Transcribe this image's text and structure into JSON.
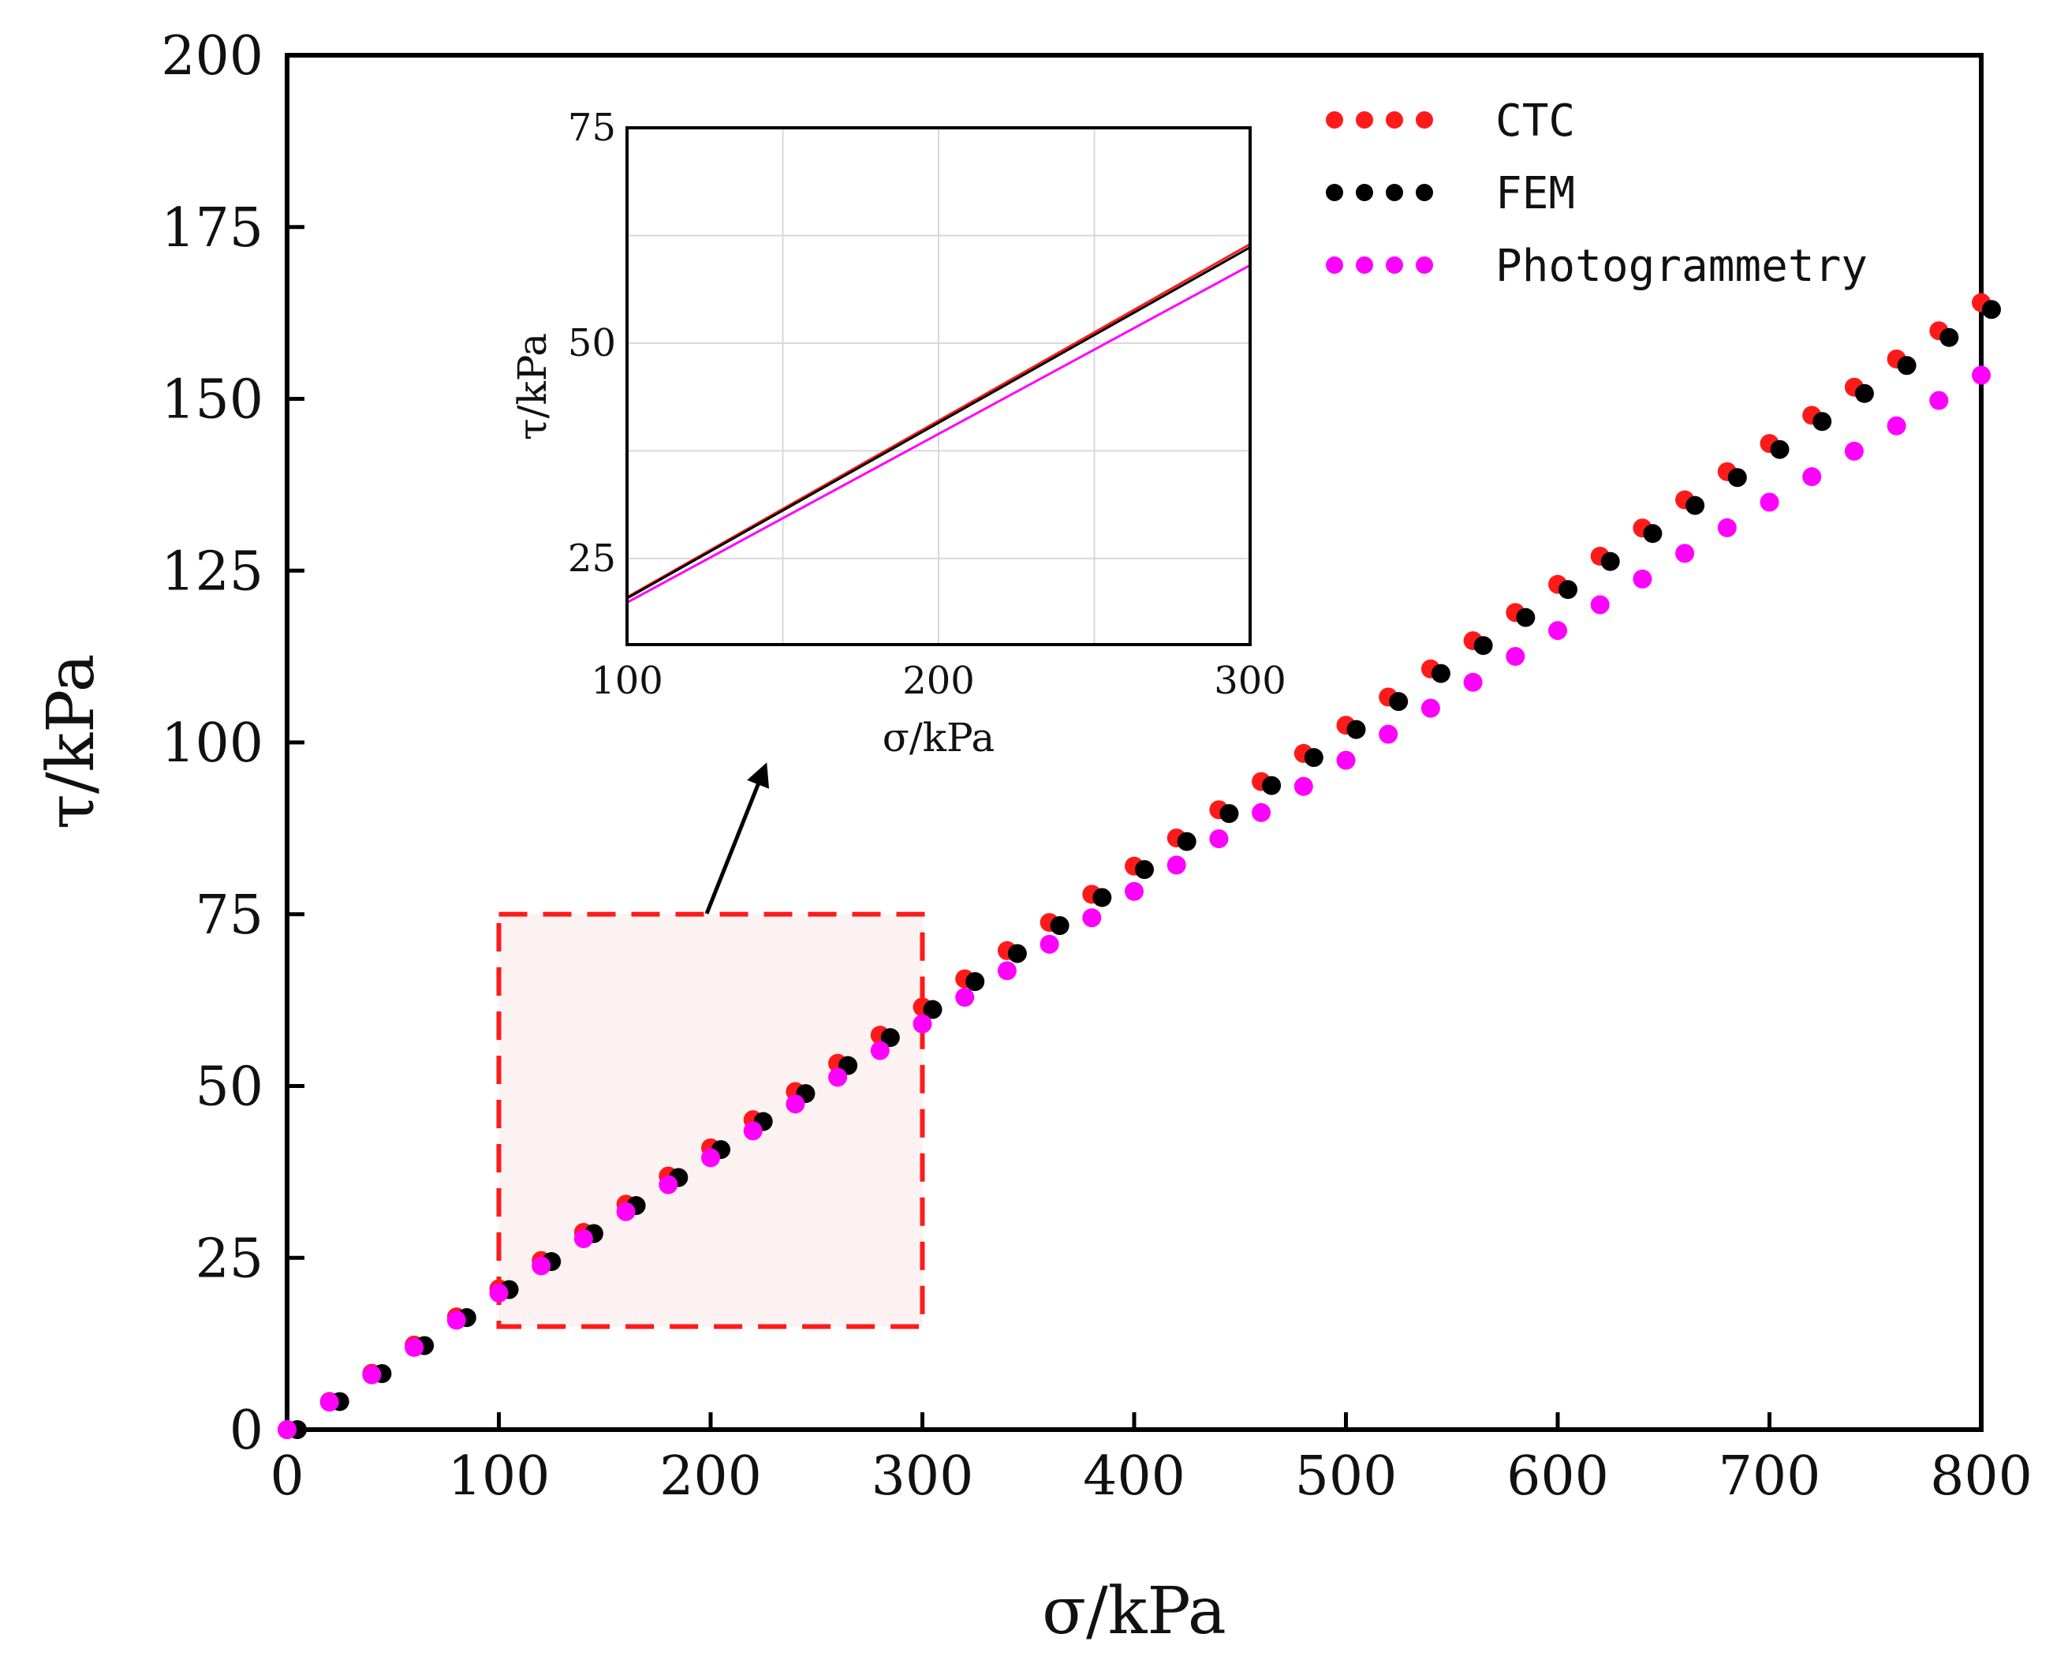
{
  "chart_data": [
    {
      "type": "scatter",
      "title": "",
      "xlabel": "σ/kPa",
      "ylabel": "τ/kPa",
      "xlim": [
        0,
        800
      ],
      "ylim": [
        0,
        200
      ],
      "xticks": [
        "0",
        "100",
        "200",
        "300",
        "400",
        "500",
        "600",
        "700",
        "800"
      ],
      "yticks": [
        "0",
        "25",
        "50",
        "75",
        "100",
        "125",
        "150",
        "175",
        "200"
      ],
      "legend_position": "top-right",
      "series": [
        {
          "name": "CTC",
          "color": "#ff1a1a",
          "x": [
            0,
            20,
            40,
            60,
            80,
            100,
            120,
            140,
            160,
            180,
            200,
            220,
            240,
            260,
            280,
            300,
            320,
            340,
            360,
            380,
            400,
            420,
            440,
            460,
            480,
            500,
            520,
            540,
            560,
            580,
            600,
            620,
            640,
            660,
            680,
            700,
            720,
            740,
            760,
            780,
            800
          ],
          "y": [
            0,
            4.1,
            8.2,
            12.3,
            16.4,
            20.5,
            24.6,
            28.7,
            32.8,
            36.9,
            41.0,
            45.1,
            49.2,
            53.3,
            57.4,
            61.5,
            65.6,
            69.7,
            73.8,
            77.9,
            82.0,
            86.1,
            90.2,
            94.3,
            98.4,
            102.5,
            106.6,
            110.7,
            114.8,
            118.9,
            123.0,
            127.1,
            131.2,
            135.3,
            139.4,
            143.5,
            147.6,
            151.7,
            155.8,
            159.9,
            164.0
          ]
        },
        {
          "name": "FEM",
          "color": "#000000",
          "x": [
            0,
            20,
            40,
            60,
            80,
            100,
            120,
            140,
            160,
            180,
            200,
            220,
            240,
            260,
            280,
            300,
            320,
            340,
            360,
            380,
            400,
            420,
            440,
            460,
            480,
            500,
            520,
            540,
            560,
            580,
            600,
            620,
            640,
            660,
            680,
            700,
            720,
            740,
            760,
            780,
            800
          ],
          "y": [
            0,
            4.08,
            8.15,
            12.23,
            16.3,
            20.38,
            24.45,
            28.53,
            32.6,
            36.68,
            40.75,
            44.83,
            48.9,
            52.98,
            57.05,
            61.13,
            65.2,
            69.28,
            73.35,
            77.43,
            81.5,
            85.58,
            89.65,
            93.73,
            97.8,
            101.88,
            105.95,
            110.03,
            114.1,
            118.18,
            122.25,
            126.33,
            130.4,
            134.48,
            138.55,
            142.63,
            146.7,
            150.78,
            154.85,
            158.93,
            163.0
          ]
        },
        {
          "name": "Photogrammetry",
          "color": "#ff00ff",
          "x": [
            0,
            20,
            40,
            60,
            80,
            100,
            120,
            140,
            160,
            180,
            200,
            220,
            240,
            260,
            280,
            300,
            320,
            340,
            360,
            380,
            400,
            420,
            440,
            460,
            480,
            500,
            520,
            540,
            560,
            580,
            600,
            620,
            640,
            660,
            680,
            700,
            720,
            740,
            760,
            780,
            800
          ],
          "y": [
            0,
            4.0,
            7.98,
            11.96,
            15.92,
            19.88,
            23.83,
            27.78,
            31.71,
            35.64,
            39.56,
            43.47,
            47.38,
            51.27,
            55.16,
            59.04,
            62.91,
            66.78,
            70.63,
            74.48,
            78.32,
            82.15,
            85.98,
            89.79,
            93.6,
            97.4,
            101.19,
            104.98,
            108.75,
            112.52,
            116.28,
            120.03,
            123.78,
            127.51,
            131.24,
            134.96,
            138.67,
            142.38,
            146.07,
            149.76,
            153.44
          ]
        }
      ],
      "highlight_region": {
        "x_range": [
          100,
          300
        ],
        "y_range": [
          15,
          75
        ]
      }
    },
    {
      "type": "line",
      "title": "",
      "xlabel": "σ/kPa",
      "ylabel": "τ/kPa",
      "xlim": [
        100,
        300
      ],
      "ylim": [
        15,
        75
      ],
      "xticks": [
        "100",
        "200",
        "300"
      ],
      "yticks": [
        "25",
        "50",
        "75"
      ],
      "grid": true,
      "series": [
        {
          "name": "CTC",
          "color": "#ff1a1a",
          "x": [
            100,
            300
          ],
          "y": [
            20.5,
            61.5
          ]
        },
        {
          "name": "FEM",
          "color": "#000000",
          "x": [
            100,
            300
          ],
          "y": [
            20.38,
            61.13
          ]
        },
        {
          "name": "Photogrammetry",
          "color": "#ff00ff",
          "x": [
            100,
            300
          ],
          "y": [
            19.88,
            59.04
          ]
        }
      ]
    }
  ]
}
